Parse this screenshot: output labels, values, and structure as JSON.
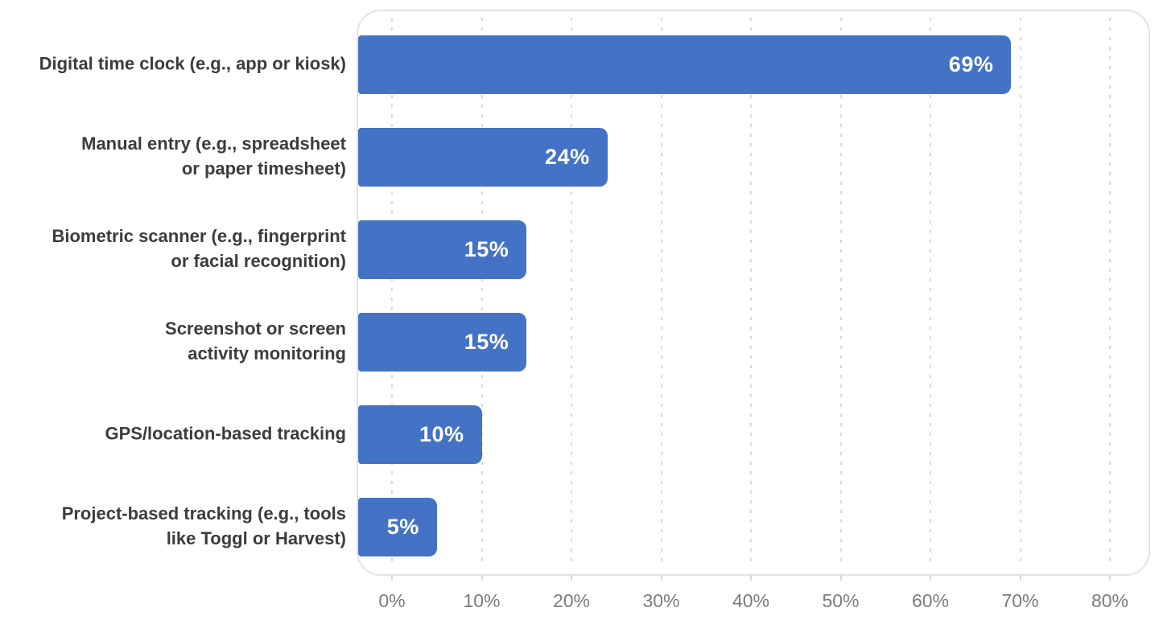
{
  "chart_data": {
    "type": "bar",
    "orientation": "horizontal",
    "title": "",
    "xlabel": "",
    "ylabel": "",
    "categories": [
      "Digital time clock (e.g., app or kiosk)",
      "Manual entry (e.g., spreadsheet or paper timesheet)",
      "Biometric scanner (e.g., fingerprint or facial recognition)",
      "Screenshot or screen activity monitoring",
      "GPS/location-based tracking",
      "Project-based tracking (e.g., tools like Toggl or Harvest)"
    ],
    "categories_lines": [
      [
        "Digital time clock (e.g., app or kiosk)"
      ],
      [
        "Manual entry (e.g., spreadsheet",
        "or paper timesheet)"
      ],
      [
        "Biometric scanner (e.g., fingerprint",
        "or facial recognition)"
      ],
      [
        "Screenshot or screen",
        "activity monitoring"
      ],
      [
        "GPS/location-based tracking"
      ],
      [
        "Project-based tracking (e.g., tools",
        "like Toggl or Harvest)"
      ]
    ],
    "values": [
      69,
      24,
      15,
      15,
      10,
      5
    ],
    "value_labels": [
      "69%",
      "24%",
      "15%",
      "15%",
      "10%",
      "5%"
    ],
    "x_ticks": [
      "0%",
      "10%",
      "20%",
      "30%",
      "40%",
      "50%",
      "60%",
      "70%",
      "80%"
    ],
    "x_tick_values": [
      0,
      10,
      20,
      30,
      40,
      50,
      60,
      70,
      80
    ],
    "xlim": [
      0,
      80
    ],
    "grid": "vertical-dashed",
    "legend": "none",
    "value_label_position": "inside-end"
  },
  "colors": {
    "bar_fill": "#4473c5",
    "value_label": "#ffffff",
    "category_label": "#3c3c3c",
    "axis_label": "#7b7b7b",
    "gridline": "#d9d9d9",
    "plot_border": "#e3e3e3",
    "background": "#ffffff"
  }
}
